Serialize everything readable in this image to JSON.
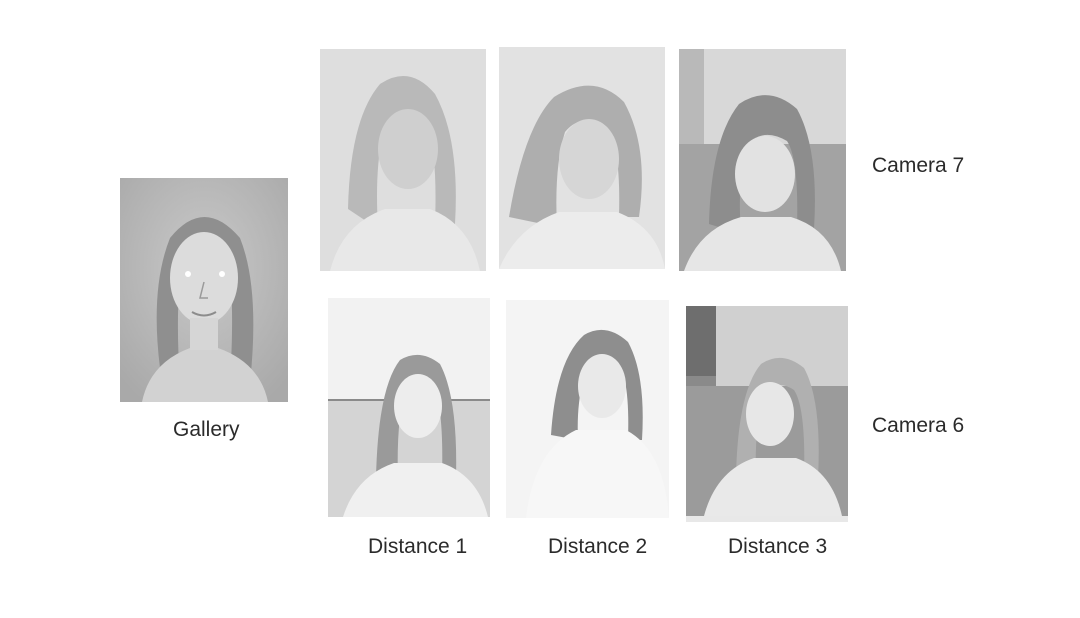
{
  "labels": {
    "gallery": "Gallery",
    "camera_top": "Camera 7",
    "camera_bottom": "Camera 6",
    "distance_1": "Distance 1",
    "distance_2": "Distance 2",
    "distance_3": "Distance 3"
  },
  "images": {
    "gallery": "gallery-face-photo",
    "cam7_d1": "camera7-distance1-face-photo",
    "cam7_d2": "camera7-distance2-face-photo",
    "cam7_d3": "camera7-distance3-face-photo",
    "cam6_d1": "camera6-distance1-face-photo",
    "cam6_d2": "camera6-distance2-face-photo",
    "cam6_d3": "camera6-distance3-face-photo"
  }
}
